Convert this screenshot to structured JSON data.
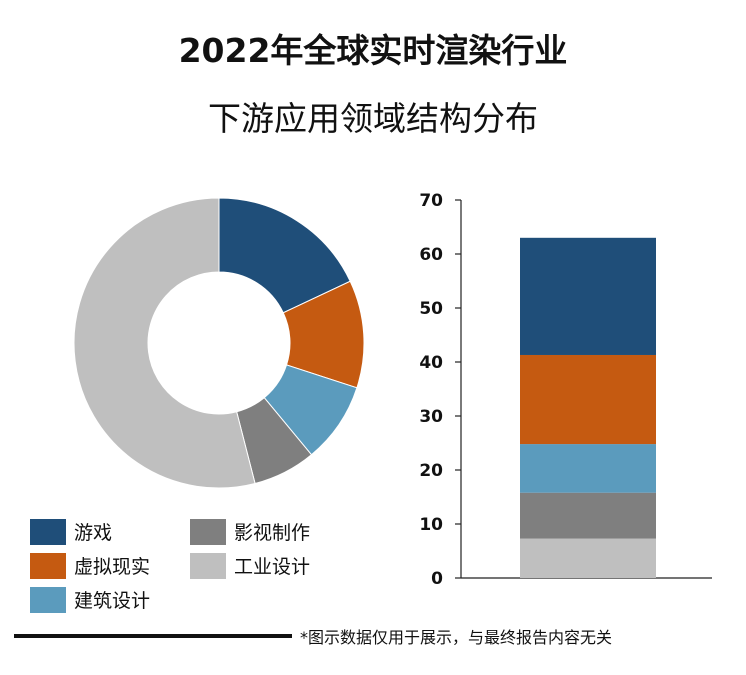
{
  "chart_data": {
    "title_line1": "2022年全球实时渲染行业",
    "title_line2": "下游应用领域结构分布",
    "type": "donut+stacked-bar",
    "categories": [
      "游戏",
      "虚拟现实",
      "建筑设计",
      "影视制作",
      "工业设计"
    ],
    "colors": [
      "#1f4e79",
      "#c55a11",
      "#5b9bbd",
      "#7f7f7f",
      "#bfbfbf"
    ],
    "donut_values": [
      18,
      12,
      9,
      7,
      54
    ],
    "bar_series": [
      {
        "name": "工业设计",
        "value": 7.3
      },
      {
        "name": "影视制作",
        "value": 8.5
      },
      {
        "name": "建筑设计",
        "value": 9.0
      },
      {
        "name": "虚拟现实",
        "value": 16.5
      },
      {
        "name": "游戏",
        "value": 21.7
      }
    ],
    "ylim": [
      0,
      70
    ],
    "yticks": [
      0,
      10,
      20,
      30,
      40,
      50,
      60,
      70
    ]
  },
  "legend": {
    "game": "游戏",
    "film": "影视制作",
    "vr": "虚拟现实",
    "industrial": "工业设计",
    "arch": "建筑设计"
  },
  "footnote": "*图示数据仅用于展示，与最终报告内容无关"
}
